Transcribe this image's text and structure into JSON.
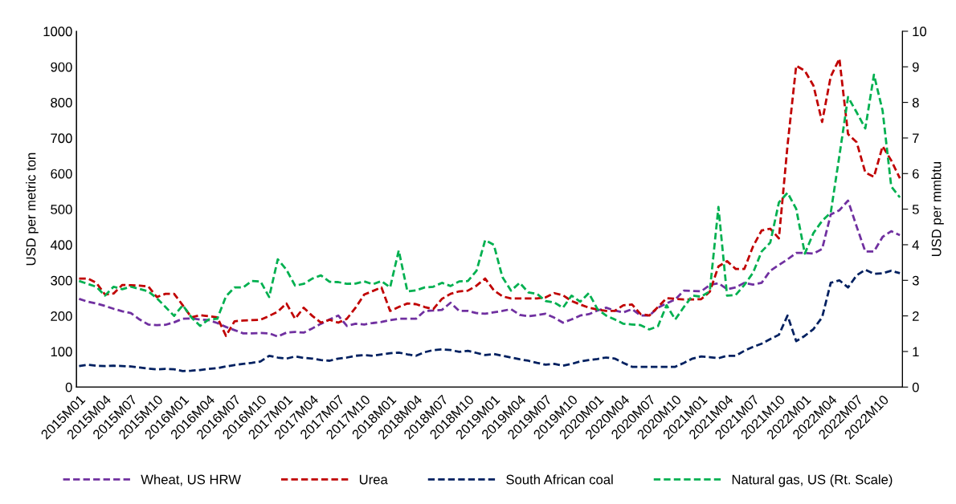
{
  "chart_data": {
    "type": "line",
    "ylabel": "USD per metric ton",
    "y2label": "USD per mmbtu",
    "categories": [
      "2015M01",
      null,
      null,
      "2015M04",
      null,
      null,
      "2015M07",
      null,
      null,
      "2015M10",
      null,
      null,
      "2016M01",
      null,
      null,
      "2016M04",
      null,
      null,
      "2016M07",
      null,
      null,
      "2016M10",
      null,
      null,
      "2017M01",
      null,
      null,
      "2017M04",
      null,
      null,
      "2017M07",
      null,
      null,
      "2017M10",
      null,
      null,
      "2018M01",
      null,
      null,
      "2018M04",
      null,
      null,
      "2018M07",
      null,
      null,
      "2018M10",
      null,
      null,
      "2019M01",
      null,
      null,
      "2019M04",
      null,
      null,
      "2019M07",
      null,
      null,
      "2019M10",
      null,
      null,
      "2020M01",
      null,
      null,
      "2020M04",
      null,
      null,
      "2020M07",
      null,
      null,
      "2020M10",
      null,
      null,
      "2021M01",
      null,
      null,
      "2021M04",
      null,
      null,
      "2021M07",
      null,
      null,
      "2021M10",
      null,
      null,
      "2022M01",
      null,
      null,
      "2022M04",
      null,
      null,
      "2022M07",
      null,
      null,
      "2022M10",
      null,
      null
    ],
    "series": [
      {
        "name": "Wheat, US HRW",
        "color": "#7030a0",
        "values": [
          248,
          240,
          235,
          228,
          220,
          213,
          208,
          190,
          176,
          174,
          175,
          182,
          192,
          193,
          190,
          188,
          180,
          169,
          160,
          151,
          151,
          152,
          151,
          142,
          153,
          155,
          153,
          165,
          178,
          190,
          201,
          172,
          178,
          176,
          180,
          183,
          188,
          192,
          192,
          192,
          214,
          215,
          217,
          237,
          214,
          214,
          208,
          206,
          210,
          214,
          219,
          203,
          199,
          202,
          206,
          195,
          181,
          190,
          201,
          205,
          215,
          223,
          215,
          210,
          219,
          201,
          201,
          223,
          235,
          246,
          271,
          270,
          269,
          287,
          292,
          275,
          280,
          293,
          288,
          293,
          327,
          343,
          359,
          377,
          377,
          375,
          388,
          485,
          497,
          524,
          451,
          381,
          381,
          422,
          438,
          427
        ]
      },
      {
        "name": "Urea",
        "color": "#c00000",
        "values": [
          305,
          305,
          293,
          260,
          263,
          287,
          286,
          285,
          283,
          253,
          262,
          262,
          230,
          196,
          202,
          199,
          196,
          144,
          185,
          187,
          188,
          189,
          200,
          212,
          235,
          192,
          223,
          200,
          181,
          189,
          181,
          192,
          223,
          260,
          270,
          280,
          214,
          225,
          235,
          233,
          225,
          219,
          248,
          262,
          269,
          271,
          285,
          305,
          272,
          255,
          249,
          249,
          249,
          249,
          252,
          264,
          258,
          242,
          232,
          223,
          218,
          214,
          214,
          230,
          232,
          205,
          201,
          225,
          250,
          248,
          246,
          246,
          247,
          268,
          339,
          354,
          332,
          332,
          395,
          440,
          445,
          418,
          680,
          903,
          889,
          847,
          745,
          873,
          923,
          711,
          688,
          603,
          591,
          677,
          637,
          587
        ]
      },
      {
        "name": "South African coal",
        "color": "#002060",
        "values": [
          59,
          63,
          60,
          59,
          60,
          59,
          58,
          55,
          52,
          50,
          51,
          50,
          45,
          46,
          48,
          51,
          53,
          58,
          62,
          65,
          68,
          72,
          88,
          83,
          80,
          86,
          82,
          80,
          76,
          74,
          80,
          83,
          88,
          90,
          88,
          92,
          95,
          97,
          92,
          88,
          98,
          104,
          106,
          104,
          99,
          102,
          96,
          90,
          93,
          88,
          83,
          78,
          74,
          68,
          63,
          65,
          60,
          65,
          72,
          76,
          79,
          83,
          80,
          68,
          57,
          57,
          57,
          57,
          57,
          57,
          68,
          80,
          86,
          84,
          81,
          88,
          88,
          102,
          113,
          122,
          135,
          147,
          201,
          129,
          144,
          163,
          196,
          293,
          300,
          280,
          314,
          330,
          318,
          320,
          327,
          320
        ]
      },
      {
        "name": "Natural gas, US (Rt. Scale)",
        "color": "#00b050",
        "axis": "y2",
        "values": [
          2.98,
          2.9,
          2.82,
          2.57,
          2.82,
          2.75,
          2.82,
          2.76,
          2.69,
          2.5,
          2.25,
          2.0,
          2.3,
          1.96,
          1.72,
          1.9,
          1.92,
          2.55,
          2.8,
          2.8,
          2.98,
          2.97,
          2.53,
          3.59,
          3.3,
          2.85,
          2.9,
          3.05,
          3.14,
          2.96,
          2.95,
          2.9,
          2.91,
          2.97,
          2.89,
          2.98,
          2.8,
          3.84,
          2.69,
          2.72,
          2.8,
          2.82,
          2.93,
          2.84,
          2.97,
          2.98,
          3.27,
          4.13,
          4.0,
          3.09,
          2.71,
          2.93,
          2.66,
          2.62,
          2.42,
          2.38,
          2.23,
          2.57,
          2.4,
          2.64,
          2.19,
          2.01,
          1.9,
          1.78,
          1.76,
          1.74,
          1.62,
          1.71,
          2.3,
          1.9,
          2.25,
          2.57,
          2.54,
          2.69,
          5.06,
          2.57,
          2.59,
          2.87,
          3.21,
          3.81,
          4.06,
          5.19,
          5.46,
          5.01,
          3.75,
          4.33,
          4.67,
          4.9,
          6.5,
          8.15,
          7.72,
          7.27,
          8.78,
          7.77,
          5.64,
          5.33
        ]
      }
    ],
    "ylim": [
      0,
      1000
    ],
    "yticks": [
      0,
      100,
      200,
      300,
      400,
      500,
      600,
      700,
      800,
      900,
      1000
    ],
    "y2lim": [
      0,
      10
    ],
    "y2ticks": [
      0,
      1,
      2,
      3,
      4,
      5,
      6,
      7,
      8,
      9,
      10
    ],
    "legend": "bottom",
    "line_style": "dashed"
  }
}
